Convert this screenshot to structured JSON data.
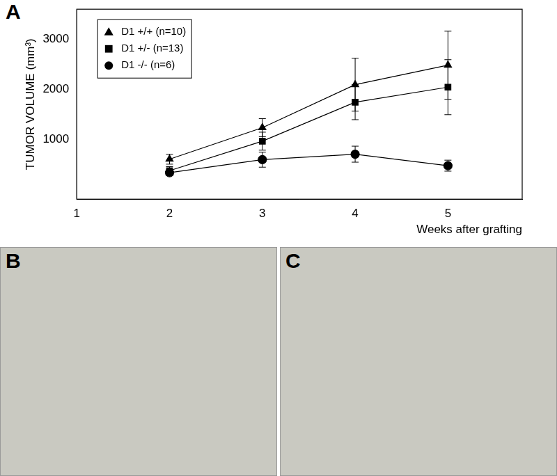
{
  "chart_data": {
    "type": "line",
    "x_label": "Weeks after grafting",
    "y_label": "TUMOR VOLUME (mm³)",
    "x": [
      2,
      3,
      4,
      5
    ],
    "series": [
      {
        "name": "D1 +/+ (n=10)",
        "color": "#000000",
        "marker": "triangle",
        "values": [
          600,
          1230,
          2090,
          2480
        ],
        "errors": [
          100,
          180,
          530,
          680
        ]
      },
      {
        "name": "D1 +/- (n=13)",
        "color": "#000000",
        "marker": "square",
        "values": [
          370,
          960,
          1740,
          2040
        ],
        "errors": [
          80,
          180,
          350,
          550
        ]
      },
      {
        "name": "D1 -/- (n=6)",
        "color": "#000000",
        "marker": "circle",
        "values": [
          330,
          590,
          700,
          470
        ],
        "errors": [
          60,
          150,
          160,
          110
        ]
      }
    ],
    "xlim": [
      1,
      5.8
    ],
    "xticks": [
      1,
      2,
      3,
      4,
      5
    ],
    "ylim": [
      -200,
      3600
    ],
    "yticks": [
      1000,
      2000,
      3000
    ],
    "grid": false,
    "legend": "upper left"
  },
  "panels": [
    {
      "label": "A"
    },
    {
      "label": "B"
    },
    {
      "label": "C"
    }
  ]
}
